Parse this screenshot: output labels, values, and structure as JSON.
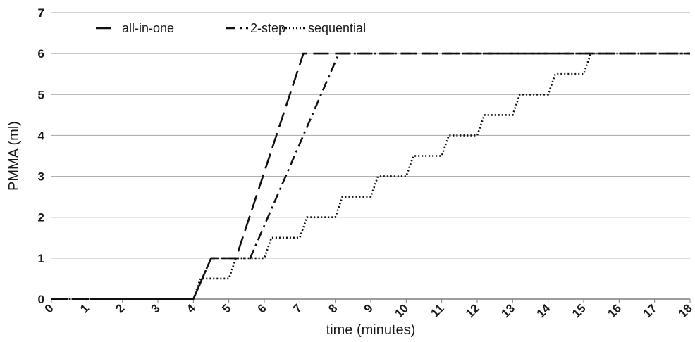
{
  "chart_data": {
    "type": "line",
    "title": "",
    "xlabel": "time (minutes)",
    "ylabel": "PMMA (ml)",
    "xlim": [
      0,
      18
    ],
    "ylim": [
      0,
      7
    ],
    "x_ticks": [
      "0",
      "1",
      "2",
      "3",
      "4",
      "5",
      "6",
      "7",
      "8",
      "9",
      "10",
      "11",
      "12",
      "13",
      "14",
      "15",
      "16",
      "17",
      "18"
    ],
    "y_ticks": [
      "0",
      "1",
      "2",
      "3",
      "4",
      "5",
      "6",
      "7"
    ],
    "grid": "horizontal",
    "legend_position": "top-left",
    "series": [
      {
        "name": "all-in-one",
        "dash": "long-dash",
        "x": [
          0,
          4,
          4.5,
          5.2,
          7.1,
          18
        ],
        "y": [
          0,
          0,
          1,
          1,
          6,
          6
        ]
      },
      {
        "name": "2-step",
        "dash": "dash-dot",
        "x": [
          0,
          4,
          4.5,
          5.6,
          8.1,
          18
        ],
        "y": [
          0,
          0,
          1,
          1,
          6,
          6
        ]
      },
      {
        "name": "sequential",
        "dash": "dotted",
        "x": [
          0,
          4,
          4.2,
          5.0,
          5.2,
          6.0,
          6.2,
          7.0,
          7.2,
          8.0,
          8.2,
          9.0,
          9.2,
          10.0,
          10.2,
          11.0,
          11.2,
          12.0,
          12.2,
          13.0,
          13.2,
          14.0,
          14.2,
          15.0,
          15.2,
          16.0,
          18
        ],
        "y": [
          0,
          0,
          0.5,
          0.5,
          1,
          1,
          1.5,
          1.5,
          2,
          2,
          2.5,
          2.5,
          3,
          3,
          3.5,
          3.5,
          4,
          4,
          4.5,
          4.5,
          5,
          5,
          5.5,
          5.5,
          6,
          6,
          6
        ]
      }
    ]
  }
}
